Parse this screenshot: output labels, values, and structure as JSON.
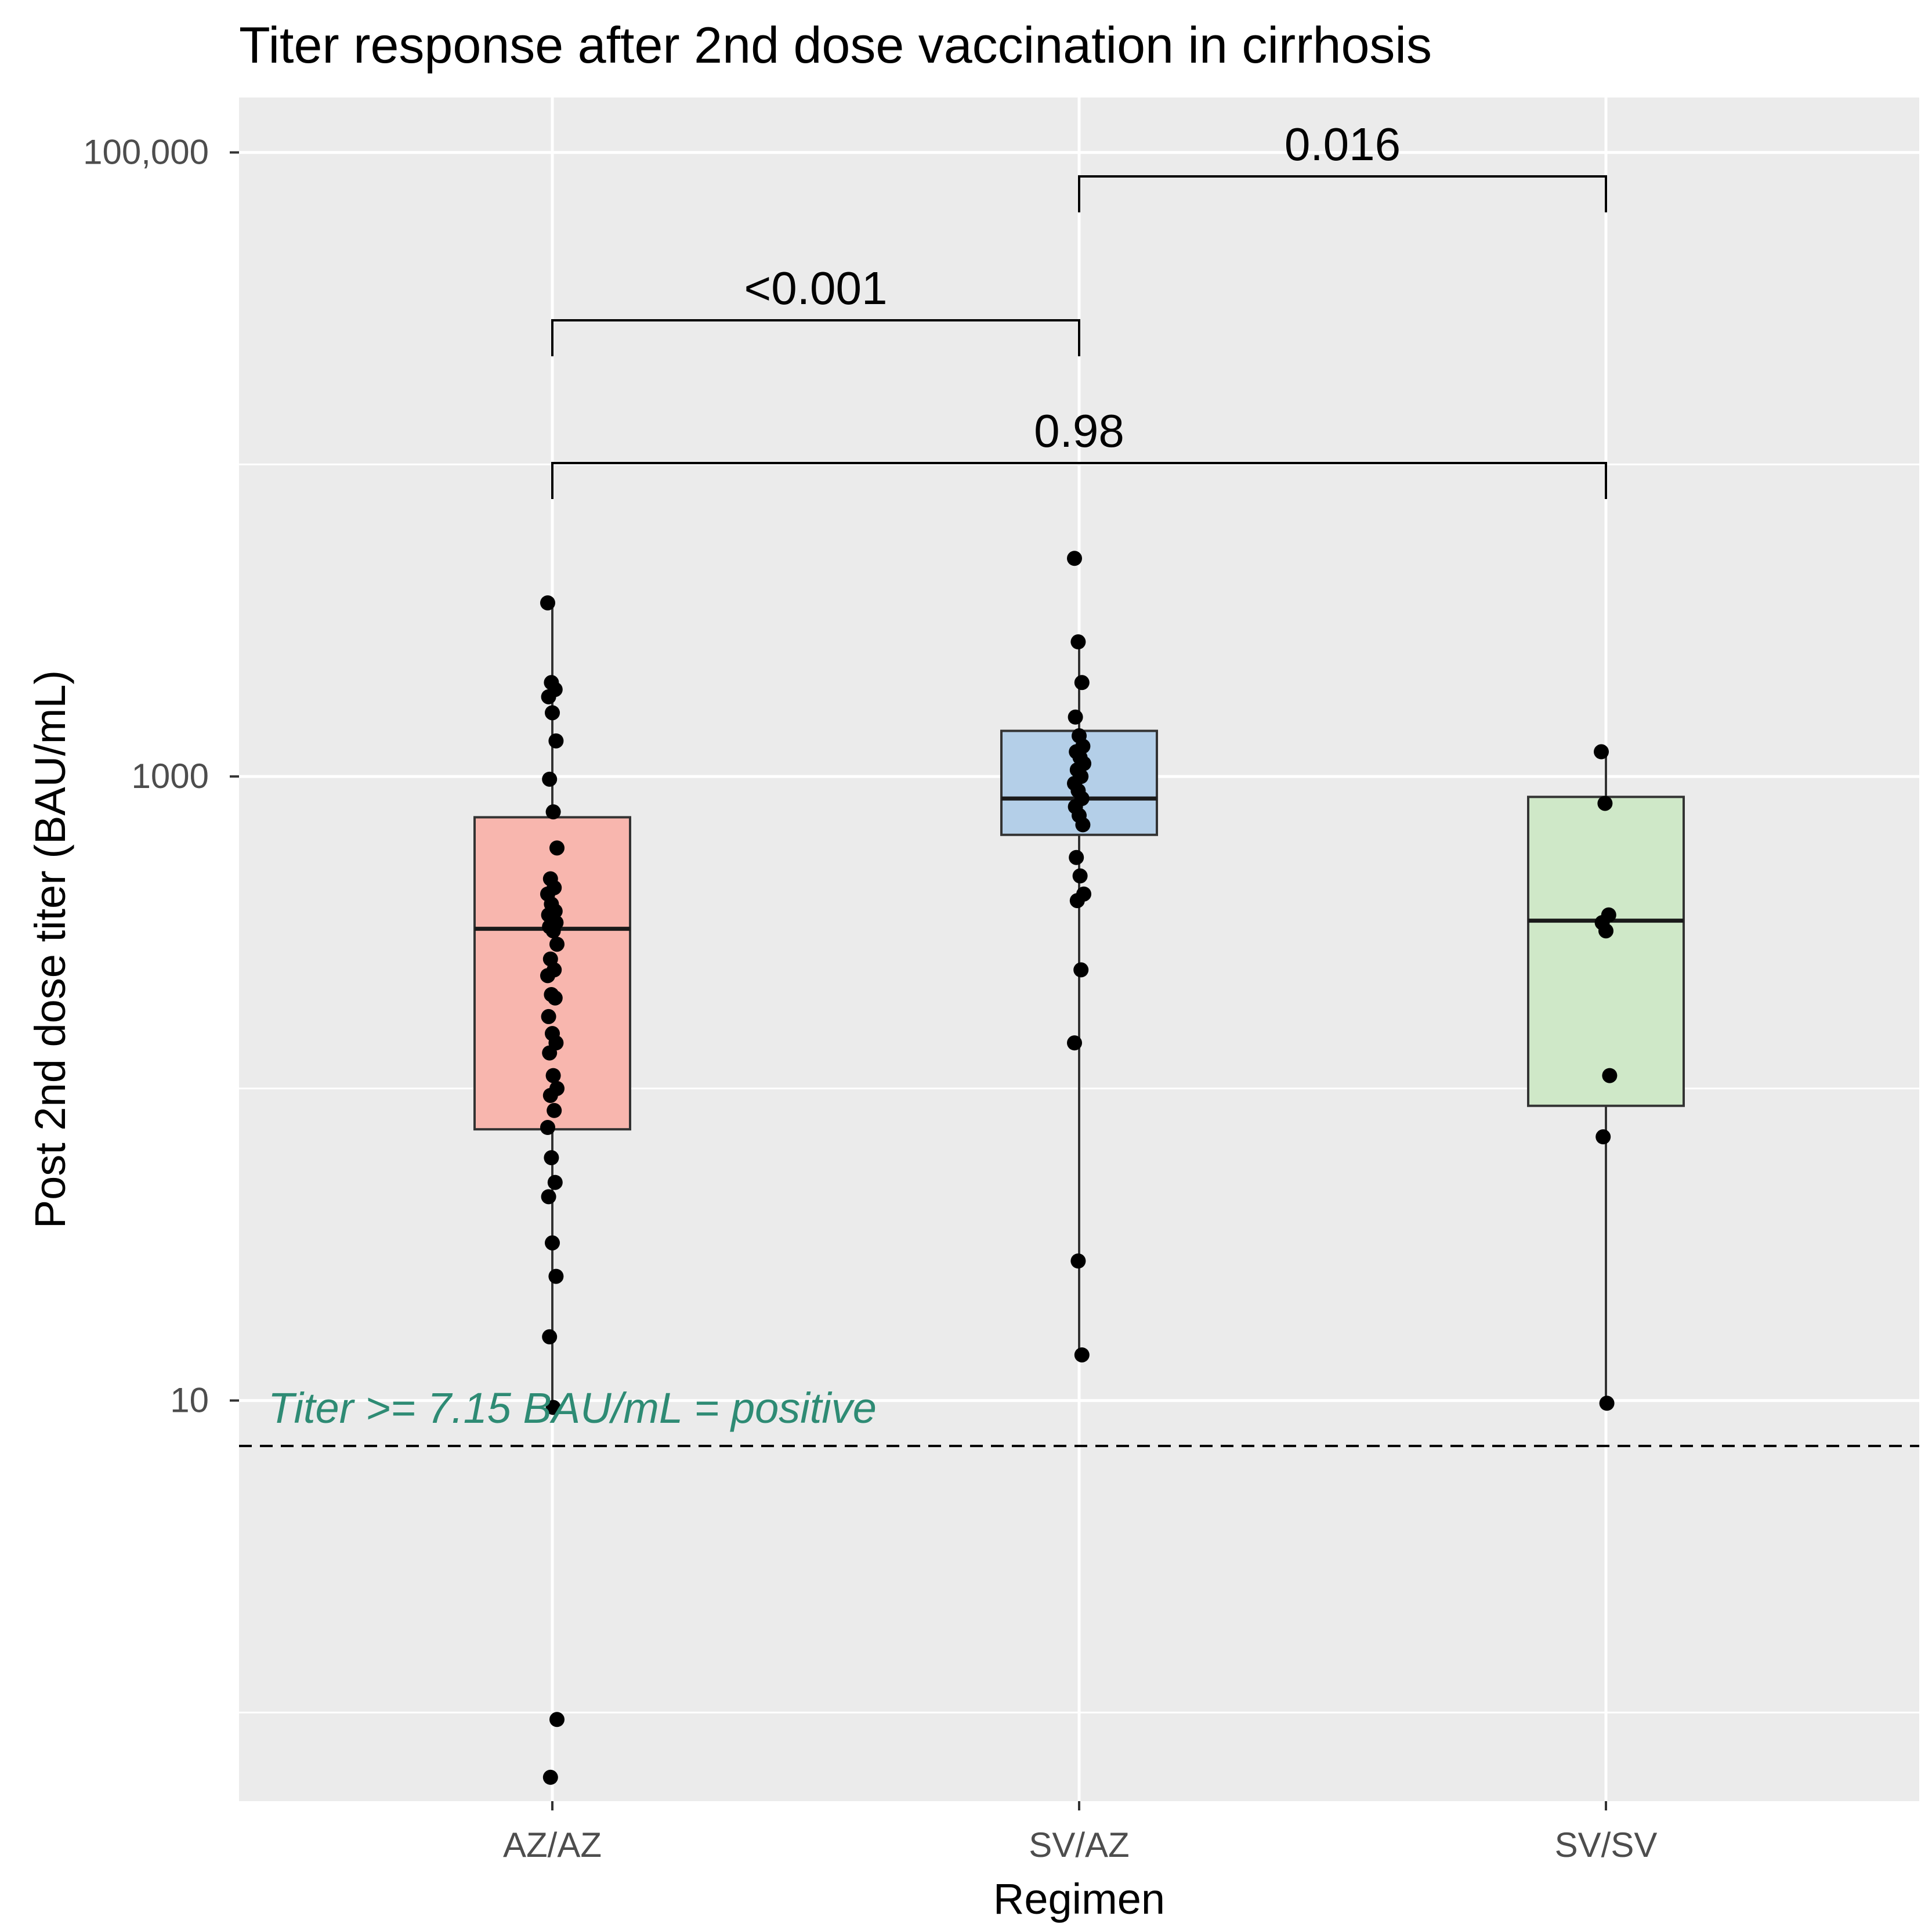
{
  "chart_data": {
    "type": "boxplot",
    "title": "Titer response after 2nd dose vaccination in cirrhosis",
    "xlabel": "Regimen",
    "ylabel": "Post 2nd dose titer (BAU/mL)",
    "yscale": "log10",
    "ylim": [
      0.52,
      150000
    ],
    "yticks": [
      {
        "value": 10,
        "label": "10"
      },
      {
        "value": 1000,
        "label": "1000"
      },
      {
        "value": 100000,
        "label": "100,000"
      }
    ],
    "y_minor_gridlines": [
      1,
      100,
      10000
    ],
    "categories": [
      "AZ/AZ",
      "SV/AZ",
      "SV/SV"
    ],
    "groups": [
      {
        "name": "AZ/AZ",
        "fill": "#f8b6ae",
        "box": {
          "q1": 74,
          "median": 325,
          "q3": 740
        },
        "whisker": [
          9.5,
          3600
        ],
        "points": [
          3600,
          2000,
          1900,
          1800,
          1600,
          1300,
          980,
          770,
          590,
          470,
          440,
          420,
          390,
          370,
          360,
          350,
          340,
          330,
          320,
          290,
          260,
          240,
          230,
          200,
          195,
          170,
          150,
          140,
          130,
          110,
          100,
          95,
          85,
          75,
          60,
          50,
          45,
          32,
          25,
          16,
          9.5,
          0.95,
          0.62
        ]
      },
      {
        "name": "SV/AZ",
        "fill": "#b4cfe8",
        "box": {
          "q1": 650,
          "median": 850,
          "q3": 1400
        },
        "whisker": [
          14,
          2700
        ],
        "points": [
          5000,
          2700,
          2000,
          1550,
          1350,
          1250,
          1200,
          1150,
          1100,
          1050,
          1000,
          950,
          900,
          850,
          800,
          750,
          700,
          550,
          480,
          420,
          400,
          240,
          140,
          28,
          14
        ]
      },
      {
        "name": "SV/SV",
        "fill": "#cfe8c8",
        "box": {
          "q1": 88,
          "median": 345,
          "q3": 860
        },
        "whisker": [
          9.8,
          1200
        ],
        "points": [
          1200,
          820,
          360,
          340,
          320,
          110,
          70,
          9.8
        ]
      }
    ],
    "comparisons": [
      {
        "groups": [
          "AZ/AZ",
          "SV/AZ"
        ],
        "label": "<0.001"
      },
      {
        "groups": [
          "SV/AZ",
          "SV/SV"
        ],
        "label": "0.016"
      },
      {
        "groups": [
          "AZ/AZ",
          "SV/SV"
        ],
        "label": "0.98"
      }
    ],
    "reference_line": {
      "value": 7.15,
      "style": "dashed"
    },
    "annotation": {
      "text": "Titer >= 7.15 BAU/mL = positive",
      "color": "#2e8b74"
    },
    "background": "#ebebeb",
    "grid": true
  }
}
